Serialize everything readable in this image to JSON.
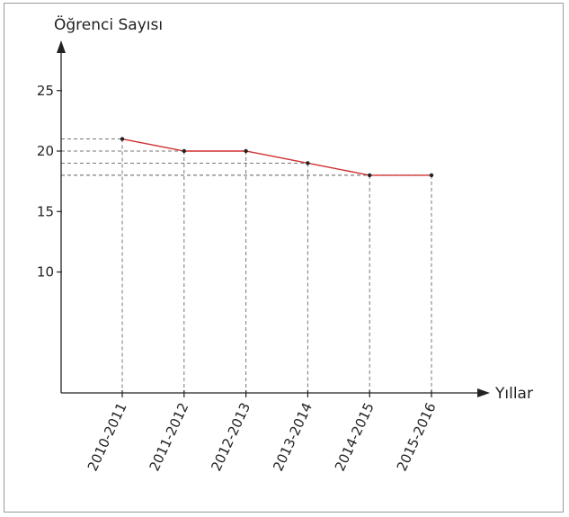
{
  "chart_data": {
    "type": "line",
    "title": "",
    "ylabel": "Öğrenci Sayısı",
    "xlabel": "Yıllar",
    "categories": [
      "2010-2011",
      "2011-2012",
      "2012-2013",
      "2013-2014",
      "2014-2015",
      "2015-2016"
    ],
    "series": [
      {
        "values": [
          21,
          20,
          20,
          19,
          18,
          18
        ]
      }
    ],
    "y_ticks": [
      10,
      15,
      20,
      25
    ],
    "ylim": [
      0,
      25
    ],
    "grid": false,
    "guide_lines": "dashed",
    "colors": {
      "line": "#d03030",
      "axis": "#222222",
      "guide": "#777777",
      "point": "#222222"
    }
  }
}
